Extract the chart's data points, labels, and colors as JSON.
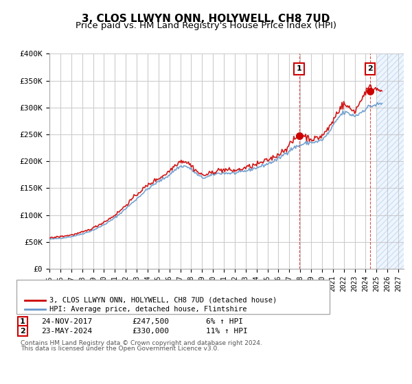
{
  "title": "3, CLOS LLWYN ONN, HOLYWELL, CH8 7UD",
  "subtitle": "Price paid vs. HM Land Registry's House Price Index (HPI)",
  "ylabel": "",
  "ylim": [
    0,
    400000
  ],
  "yticks": [
    0,
    50000,
    100000,
    150000,
    200000,
    250000,
    300000,
    350000,
    400000
  ],
  "ytick_labels": [
    "£0",
    "£50K",
    "£100K",
    "£150K",
    "£200K",
    "£250K",
    "£300K",
    "£350K",
    "£400K"
  ],
  "xlim_start": 1995.0,
  "xlim_end": 2027.5,
  "xtick_years": [
    1995,
    1996,
    1997,
    1998,
    1999,
    2000,
    2001,
    2002,
    2003,
    2004,
    2005,
    2006,
    2007,
    2008,
    2009,
    2010,
    2011,
    2012,
    2013,
    2014,
    2015,
    2016,
    2017,
    2018,
    2019,
    2020,
    2021,
    2022,
    2023,
    2024,
    2025,
    2026,
    2027
  ],
  "red_line_color": "#cc0000",
  "blue_line_color": "#6699cc",
  "grid_color": "#cccccc",
  "bg_color": "#ffffff",
  "plot_bg_color": "#ffffff",
  "stripe_color": "#ddeeff",
  "stripe_start": 2025.0,
  "sale1_x": 2017.9,
  "sale1_y": 247500,
  "sale2_x": 2024.4,
  "sale2_y": 330000,
  "sale1_label": "1",
  "sale2_label": "2",
  "dashed_line1_x": 2017.9,
  "dashed_line2_x": 2024.4,
  "legend_line1": "3, CLOS LLWYN ONN, HOLYWELL, CH8 7UD (detached house)",
  "legend_line2": "HPI: Average price, detached house, Flintshire",
  "table_row1": [
    "1",
    "24-NOV-2017",
    "£247,500",
    "6% ↑ HPI"
  ],
  "table_row2": [
    "2",
    "23-MAY-2024",
    "£330,000",
    "11% ↑ HPI"
  ],
  "footnote1": "Contains HM Land Registry data © Crown copyright and database right 2024.",
  "footnote2": "This data is licensed under the Open Government Licence v3.0.",
  "title_fontsize": 11,
  "subtitle_fontsize": 9.5
}
